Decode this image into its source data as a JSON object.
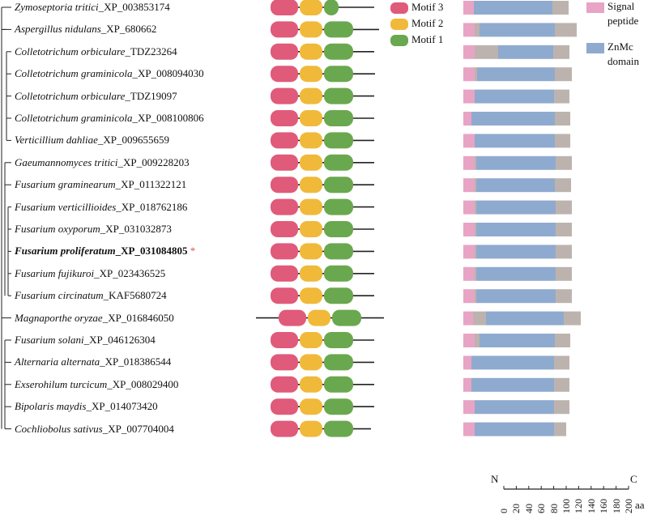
{
  "species": [
    {
      "genus": "Zymoseptoria tritici",
      "acc": "_XP_003853174",
      "bold": false,
      "star": false
    },
    {
      "genus": "Aspergillus nidulans",
      "acc": "_XP_680662",
      "bold": false,
      "star": false
    },
    {
      "genus": "Colletotrichum orbiculare",
      "acc": "_TDZ23264",
      "bold": false,
      "star": false
    },
    {
      "genus": "Colletotrichum graminicola",
      "acc": "_XP_008094030",
      "bold": false,
      "star": false
    },
    {
      "genus": "Colletotrichum orbiculare",
      "acc": "_TDZ19097",
      "bold": false,
      "star": false
    },
    {
      "genus": "Colletotrichum graminicola",
      "acc": "_XP_008100806",
      "bold": false,
      "star": false
    },
    {
      "genus": "Verticillium dahliae",
      "acc": "_XP_009655659",
      "bold": false,
      "star": false
    },
    {
      "genus": "Gaeumannomyces tritici",
      "acc": "_XP_009228203",
      "bold": false,
      "star": false
    },
    {
      "genus": "Fusarium graminearum",
      "acc": "_XP_011322121",
      "bold": false,
      "star": false
    },
    {
      "genus": "Fusarium verticillioides",
      "acc": "_XP_018762186",
      "bold": false,
      "star": false
    },
    {
      "genus": "Fusarium oxyporum",
      "acc": "_XP_031032873",
      "bold": false,
      "star": false
    },
    {
      "genus": "Fusarium proliferatum",
      "acc": "_XP_031084805",
      "bold": true,
      "star": true
    },
    {
      "genus": "Fusarium fujikuroi",
      "acc": "_XP_023436525",
      "bold": false,
      "star": false
    },
    {
      "genus": "Fusarium circinatum",
      "acc": "_KAF5680724",
      "bold": false,
      "star": false
    },
    {
      "genus": "Magnaporthe oryzae",
      "acc": "_XP_016846050",
      "bold": false,
      "star": false
    },
    {
      "genus": "Fusarium solani",
      "acc": "_XP_046126304",
      "bold": false,
      "star": false
    },
    {
      "genus": "Alternaria alternata",
      "acc": "_XP_018386544",
      "bold": false,
      "star": false
    },
    {
      "genus": "Exserohilum turcicum",
      "acc": "_XP_008029400",
      "bold": false,
      "star": false
    },
    {
      "genus": "Bipolaris maydis",
      "acc": "_XP_014073420",
      "bold": false,
      "star": false
    },
    {
      "genus": "Cochliobolus sativus",
      "acc": "_XP_007704004",
      "bold": false,
      "star": false
    }
  ],
  "star_symbol": "*",
  "motif_legend": [
    {
      "label": "Motif 3",
      "color": "#e05a7a"
    },
    {
      "label": "Motif 2",
      "color": "#f0b93a"
    },
    {
      "label": "Motif 1",
      "color": "#6aa84f"
    }
  ],
  "domain_legend": [
    {
      "label_lines": [
        "Signal",
        "peptide"
      ],
      "color": "#e8a4c4"
    },
    {
      "label_lines": [
        "ZnMc",
        "domain"
      ],
      "color": "#8faacf"
    }
  ],
  "other_color": "#bdb3ae",
  "scale": {
    "n_label": "N",
    "c_label": "C",
    "unit": "aa",
    "ticks": [
      "0",
      "20",
      "40",
      "60",
      "80",
      "100",
      "120",
      "140",
      "160",
      "180",
      "200"
    ]
  }
}
